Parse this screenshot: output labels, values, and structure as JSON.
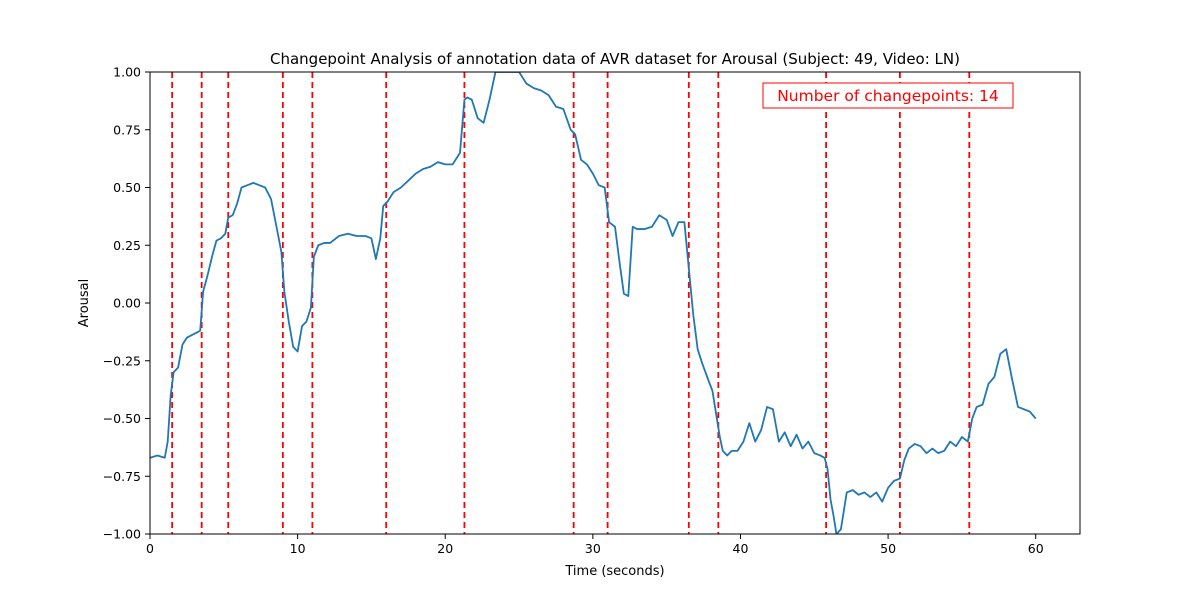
{
  "chart_data": {
    "type": "line",
    "title": "Changepoint Analysis of annotation data of AVR dataset for Arousal (Subject: 49, Video: LN)",
    "xlabel": "Time (seconds)",
    "ylabel": "Arousal",
    "xlim": [
      0,
      63
    ],
    "ylim": [
      -1.0,
      1.0
    ],
    "xticks": [
      0,
      10,
      20,
      30,
      40,
      50,
      60
    ],
    "xtick_labels": [
      "0",
      "10",
      "20",
      "30",
      "40",
      "50",
      "60"
    ],
    "yticks": [
      -1.0,
      -0.75,
      -0.5,
      -0.25,
      0.0,
      0.25,
      0.5,
      0.75,
      1.0
    ],
    "ytick_labels": [
      "−1.00",
      "−0.75",
      "−0.50",
      "−0.25",
      "0.00",
      "0.25",
      "0.50",
      "0.75",
      "1.00"
    ],
    "grid": false,
    "annotation": "Number of changepoints: 14",
    "colors": {
      "series": "#1f77b4",
      "changepoint": "#ff0000"
    },
    "series": [
      {
        "x": [
          0,
          0.5,
          1.0,
          1.2,
          1.4,
          1.6,
          1.9,
          2.2,
          2.5,
          2.8,
          3.1,
          3.4,
          3.6,
          3.9,
          4.2,
          4.5,
          4.8,
          5.1,
          5.3,
          5.6,
          5.9,
          6.2,
          6.6,
          7.0,
          7.4,
          7.8,
          8.2,
          8.6,
          8.9,
          9.1,
          9.4,
          9.7,
          10.0,
          10.3,
          10.6,
          10.9,
          11.1,
          11.4,
          11.8,
          12.2,
          12.8,
          13.4,
          14.0,
          14.6,
          15.0,
          15.3,
          15.6,
          15.8,
          16.1,
          16.5,
          17.0,
          17.5,
          18.0,
          18.5,
          19.0,
          19.5,
          20.0,
          20.5,
          21.0,
          21.3,
          21.5,
          21.8,
          22.2,
          22.6,
          23.0,
          23.4,
          23.8,
          24.2,
          24.6,
          25.0,
          25.5,
          26.0,
          26.5,
          27.0,
          27.5,
          28.0,
          28.5,
          28.8,
          29.2,
          29.6,
          30.0,
          30.4,
          30.8,
          31.1,
          31.5,
          31.8,
          32.1,
          32.4,
          32.7,
          33.0,
          33.5,
          34.0,
          34.5,
          35.0,
          35.4,
          35.8,
          36.2,
          36.5,
          36.8,
          37.1,
          37.4,
          37.8,
          38.1,
          38.4,
          38.6,
          38.8,
          39.1,
          39.4,
          39.8,
          40.2,
          40.6,
          41.0,
          41.4,
          41.8,
          42.2,
          42.6,
          43.0,
          43.4,
          43.8,
          44.2,
          44.6,
          45.0,
          45.4,
          45.7,
          45.9,
          46.1,
          46.3,
          46.5,
          46.8,
          47.2,
          47.6,
          48.0,
          48.4,
          48.8,
          49.2,
          49.6,
          50.0,
          50.4,
          50.8,
          51.1,
          51.4,
          51.8,
          52.2,
          52.6,
          53.0,
          53.4,
          53.8,
          54.2,
          54.6,
          55.0,
          55.4,
          55.7,
          56.0,
          56.4,
          56.8,
          57.2,
          57.6,
          58.0,
          58.4,
          58.8,
          59.2,
          59.6,
          60.0
        ],
        "y": [
          -0.67,
          -0.66,
          -0.67,
          -0.6,
          -0.4,
          -0.3,
          -0.28,
          -0.18,
          -0.15,
          -0.14,
          -0.13,
          -0.12,
          0.05,
          0.12,
          0.2,
          0.27,
          0.28,
          0.3,
          0.37,
          0.38,
          0.43,
          0.5,
          0.51,
          0.52,
          0.51,
          0.5,
          0.45,
          0.32,
          0.22,
          0.05,
          -0.08,
          -0.19,
          -0.21,
          -0.1,
          -0.08,
          -0.02,
          0.2,
          0.25,
          0.26,
          0.26,
          0.29,
          0.3,
          0.29,
          0.29,
          0.28,
          0.19,
          0.28,
          0.42,
          0.44,
          0.48,
          0.5,
          0.53,
          0.56,
          0.58,
          0.59,
          0.61,
          0.6,
          0.6,
          0.65,
          0.88,
          0.89,
          0.88,
          0.8,
          0.78,
          0.88,
          1.0,
          1.0,
          1.0,
          1.0,
          1.0,
          0.95,
          0.93,
          0.92,
          0.9,
          0.85,
          0.84,
          0.75,
          0.73,
          0.62,
          0.6,
          0.56,
          0.51,
          0.5,
          0.35,
          0.33,
          0.18,
          0.04,
          0.03,
          0.33,
          0.32,
          0.32,
          0.33,
          0.38,
          0.36,
          0.29,
          0.35,
          0.35,
          0.15,
          -0.05,
          -0.2,
          -0.26,
          -0.33,
          -0.38,
          -0.5,
          -0.58,
          -0.64,
          -0.66,
          -0.64,
          -0.64,
          -0.6,
          -0.52,
          -0.6,
          -0.55,
          -0.45,
          -0.46,
          -0.6,
          -0.56,
          -0.62,
          -0.57,
          -0.63,
          -0.6,
          -0.65,
          -0.66,
          -0.67,
          -0.72,
          -0.85,
          -0.92,
          -1.0,
          -0.98,
          -0.82,
          -0.81,
          -0.83,
          -0.82,
          -0.84,
          -0.82,
          -0.86,
          -0.8,
          -0.77,
          -0.76,
          -0.68,
          -0.63,
          -0.61,
          -0.62,
          -0.65,
          -0.63,
          -0.65,
          -0.64,
          -0.6,
          -0.62,
          -0.58,
          -0.6,
          -0.5,
          -0.45,
          -0.44,
          -0.35,
          -0.32,
          -0.22,
          -0.2,
          -0.33,
          -0.45,
          -0.46,
          -0.47,
          -0.5
        ]
      }
    ],
    "changepoints": [
      1.5,
      3.5,
      5.3,
      9.0,
      11.0,
      16.0,
      21.3,
      28.7,
      31.0,
      36.5,
      38.5,
      45.8,
      50.8,
      55.5
    ]
  }
}
